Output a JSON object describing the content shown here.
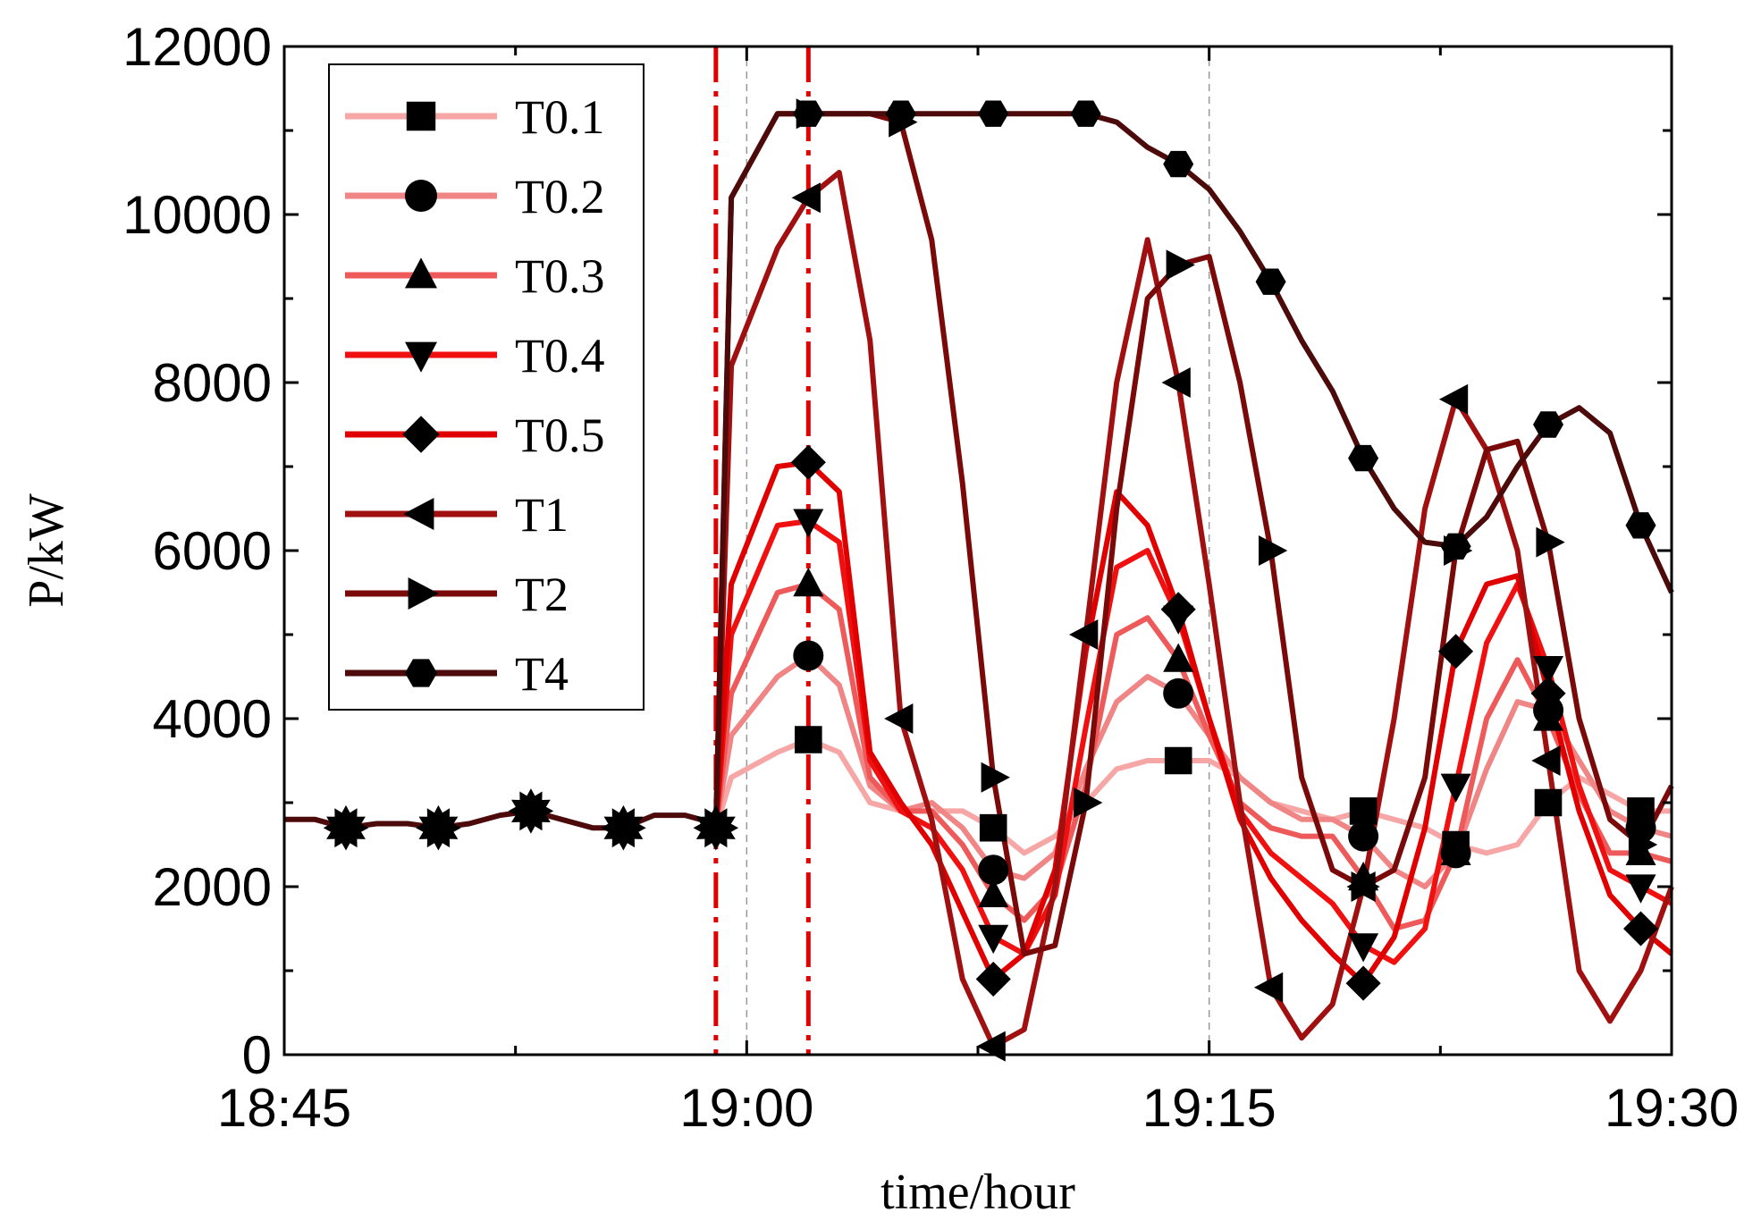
{
  "chart_data": {
    "type": "line",
    "title": "",
    "xlabel": "time/hour",
    "ylabel": "P/kW",
    "x_unit": "minutes after 18:45",
    "xlim": [
      0,
      45
    ],
    "ylim": [
      0,
      12000
    ],
    "xticks": [
      {
        "value": 0,
        "label": "18:45"
      },
      {
        "value": 15,
        "label": "19:00"
      },
      {
        "value": 30,
        "label": "19:15"
      },
      {
        "value": 45,
        "label": "19:30"
      }
    ],
    "yticks": [
      {
        "value": 0,
        "label": "0"
      },
      {
        "value": 2000,
        "label": "2000"
      },
      {
        "value": 4000,
        "label": "4000"
      },
      {
        "value": 6000,
        "label": "6000"
      },
      {
        "value": 8000,
        "label": "8000"
      },
      {
        "value": 10000,
        "label": "10000"
      },
      {
        "value": 12000,
        "label": "12000"
      }
    ],
    "grid_x": [
      15,
      30
    ],
    "markers_vertical": [
      14.0,
      17.0
    ],
    "legend_position": "top-left",
    "baseline": {
      "x": [
        0,
        1,
        2,
        3,
        4,
        5,
        6,
        7,
        8,
        9,
        10,
        11,
        12,
        13,
        13.5,
        14.0
      ],
      "y": [
        2800,
        2800,
        2700,
        2750,
        2750,
        2700,
        2750,
        2850,
        2900,
        2800,
        2700,
        2700,
        2850,
        2850,
        2800,
        2700
      ],
      "markers_x": [
        2,
        5,
        8,
        11,
        14
      ]
    },
    "series": [
      {
        "name": "T0.1",
        "color": "#F7A6A6",
        "marker": "square",
        "x": [
          14.0,
          14.5,
          16,
          17,
          18,
          19,
          20,
          21,
          22,
          23,
          24,
          25,
          26,
          27,
          28,
          29,
          30,
          31,
          32,
          33,
          34,
          35,
          36,
          37,
          38,
          39,
          40,
          41,
          42,
          43,
          44,
          45
        ],
        "y": [
          2700,
          3300,
          3600,
          3750,
          3600,
          3000,
          2900,
          2900,
          2900,
          2700,
          2400,
          2600,
          3000,
          3400,
          3500,
          3500,
          3500,
          3300,
          3000,
          2900,
          2800,
          2900,
          2800,
          2700,
          2500,
          2400,
          2500,
          3000,
          3300,
          3100,
          2900,
          2900
        ],
        "markers_x": [
          17,
          23,
          29,
          35,
          38,
          41,
          44
        ]
      },
      {
        "name": "T0.2",
        "color": "#F08585",
        "marker": "circle",
        "x": [
          14.0,
          14.5,
          16,
          17,
          18,
          19,
          20,
          21,
          22,
          23,
          24,
          25,
          26,
          27,
          28,
          29,
          30,
          31,
          32,
          33,
          34,
          35,
          36,
          37,
          38,
          39,
          40,
          41,
          42,
          43,
          44,
          45
        ],
        "y": [
          2700,
          3800,
          4500,
          4750,
          4400,
          3200,
          2900,
          3000,
          2700,
          2200,
          2100,
          2400,
          3400,
          4200,
          4500,
          4300,
          3800,
          3300,
          3000,
          2800,
          2800,
          2600,
          2200,
          2000,
          2400,
          3400,
          4200,
          4100,
          3500,
          2900,
          2700,
          2600
        ],
        "markers_x": [
          17,
          23,
          29,
          35,
          38,
          41,
          44
        ]
      },
      {
        "name": "T0.3",
        "color": "#EE5A5A",
        "marker": "triangle-up",
        "x": [
          14.0,
          14.5,
          16,
          17,
          18,
          19,
          20,
          21,
          22,
          23,
          24,
          25,
          26,
          27,
          28,
          29,
          30,
          31,
          32,
          33,
          34,
          35,
          36,
          37,
          38,
          39,
          40,
          41,
          42,
          43,
          44,
          45
        ],
        "y": [
          2700,
          4300,
          5500,
          5600,
          5300,
          3300,
          2900,
          2900,
          2500,
          1900,
          1600,
          2000,
          3200,
          5000,
          5200,
          4700,
          3800,
          3000,
          2700,
          2600,
          2600,
          2100,
          1500,
          1600,
          2400,
          4000,
          4700,
          4000,
          3100,
          2400,
          2400,
          2300
        ],
        "markers_x": [
          17,
          23,
          29,
          35,
          38,
          41,
          44
        ]
      },
      {
        "name": "T0.4",
        "color": "#F01010",
        "marker": "triangle-down",
        "x": [
          14.0,
          14.5,
          16,
          17,
          18,
          19,
          20,
          21,
          22,
          23,
          24,
          25,
          26,
          27,
          28,
          29,
          30,
          31,
          32,
          33,
          34,
          35,
          36,
          37,
          38,
          39,
          40,
          41,
          42,
          43,
          44,
          45
        ],
        "y": [
          2700,
          5000,
          6300,
          6350,
          6100,
          3500,
          2900,
          2700,
          2200,
          1400,
          1200,
          1900,
          3900,
          5800,
          6000,
          5200,
          4000,
          2900,
          2400,
          2100,
          1800,
          1300,
          1100,
          1500,
          3200,
          4900,
          5600,
          4600,
          3200,
          2200,
          2000,
          1800
        ],
        "markers_x": [
          17,
          23,
          29,
          35,
          38,
          41,
          44
        ]
      },
      {
        "name": "T0.5",
        "color": "#E00000",
        "marker": "diamond",
        "x": [
          14.0,
          14.5,
          16,
          17,
          18,
          19,
          20,
          21,
          22,
          23,
          24,
          25,
          26,
          27,
          28,
          29,
          30,
          31,
          32,
          33,
          34,
          35,
          36,
          37,
          38,
          39,
          40,
          41,
          42,
          43,
          44,
          45
        ],
        "y": [
          2700,
          5600,
          7000,
          7050,
          6700,
          3600,
          3000,
          2500,
          1700,
          900,
          1200,
          2200,
          4800,
          6700,
          6300,
          5300,
          4000,
          2800,
          2100,
          1600,
          1200,
          850,
          1400,
          2700,
          4800,
          5600,
          5700,
          4300,
          2900,
          1900,
          1500,
          1200
        ],
        "markers_x": [
          17,
          23,
          29,
          35,
          38,
          41,
          44
        ]
      },
      {
        "name": "T1",
        "color": "#A01010",
        "marker": "triangle-left",
        "x": [
          14.0,
          14.5,
          16,
          17,
          18,
          19,
          20,
          21,
          22,
          23,
          24,
          25,
          26,
          27,
          28,
          29,
          30,
          31,
          32,
          33,
          34,
          35,
          36,
          37,
          38,
          39,
          40,
          41,
          42,
          43,
          44,
          45
        ],
        "y": [
          2700,
          8200,
          9600,
          10200,
          10500,
          8500,
          4000,
          2800,
          900,
          100,
          300,
          2000,
          5000,
          8000,
          9700,
          8000,
          5600,
          3000,
          800,
          200,
          600,
          2000,
          4000,
          6500,
          7800,
          7200,
          6000,
          3500,
          1000,
          400,
          1000,
          2000
        ],
        "markers_x": [
          17,
          20,
          23,
          26,
          29,
          32,
          35,
          38,
          41
        ]
      },
      {
        "name": "T2",
        "color": "#7A0A0A",
        "marker": "triangle-right",
        "x": [
          14.0,
          14.5,
          16,
          17,
          18,
          19,
          20,
          21,
          22,
          23,
          24,
          25,
          26,
          27,
          28,
          29,
          30,
          31,
          32,
          33,
          34,
          35,
          36,
          37,
          38,
          39,
          40,
          41,
          42,
          43,
          44,
          45
        ],
        "y": [
          2700,
          10200,
          11200,
          11200,
          11200,
          11200,
          11100,
          9700,
          6800,
          3300,
          1200,
          1300,
          3000,
          6500,
          9000,
          9400,
          9500,
          8000,
          6000,
          3300,
          2200,
          2000,
          2200,
          3300,
          6000,
          7200,
          7300,
          6100,
          4000,
          2800,
          2500,
          3200
        ],
        "markers_x": [
          17,
          20,
          23,
          26,
          29,
          32,
          35,
          38,
          41,
          44
        ]
      },
      {
        "name": "T4",
        "color": "#4D0A0A",
        "marker": "hexagon",
        "x": [
          14.0,
          14.5,
          16,
          17,
          18,
          19,
          20,
          21,
          22,
          23,
          24,
          25,
          26,
          27,
          28,
          29,
          30,
          31,
          32,
          33,
          34,
          35,
          36,
          37,
          38,
          39,
          40,
          41,
          42,
          43,
          44,
          45
        ],
        "y": [
          2700,
          10200,
          11200,
          11200,
          11200,
          11200,
          11200,
          11200,
          11200,
          11200,
          11200,
          11200,
          11200,
          11100,
          10800,
          10600,
          10300,
          9800,
          9200,
          8500,
          7900,
          7100,
          6500,
          6100,
          6050,
          6400,
          7000,
          7500,
          7700,
          7400,
          6300,
          5500
        ],
        "markers_x": [
          17,
          20,
          23,
          26,
          29,
          32,
          35,
          38,
          41,
          44
        ]
      }
    ]
  }
}
